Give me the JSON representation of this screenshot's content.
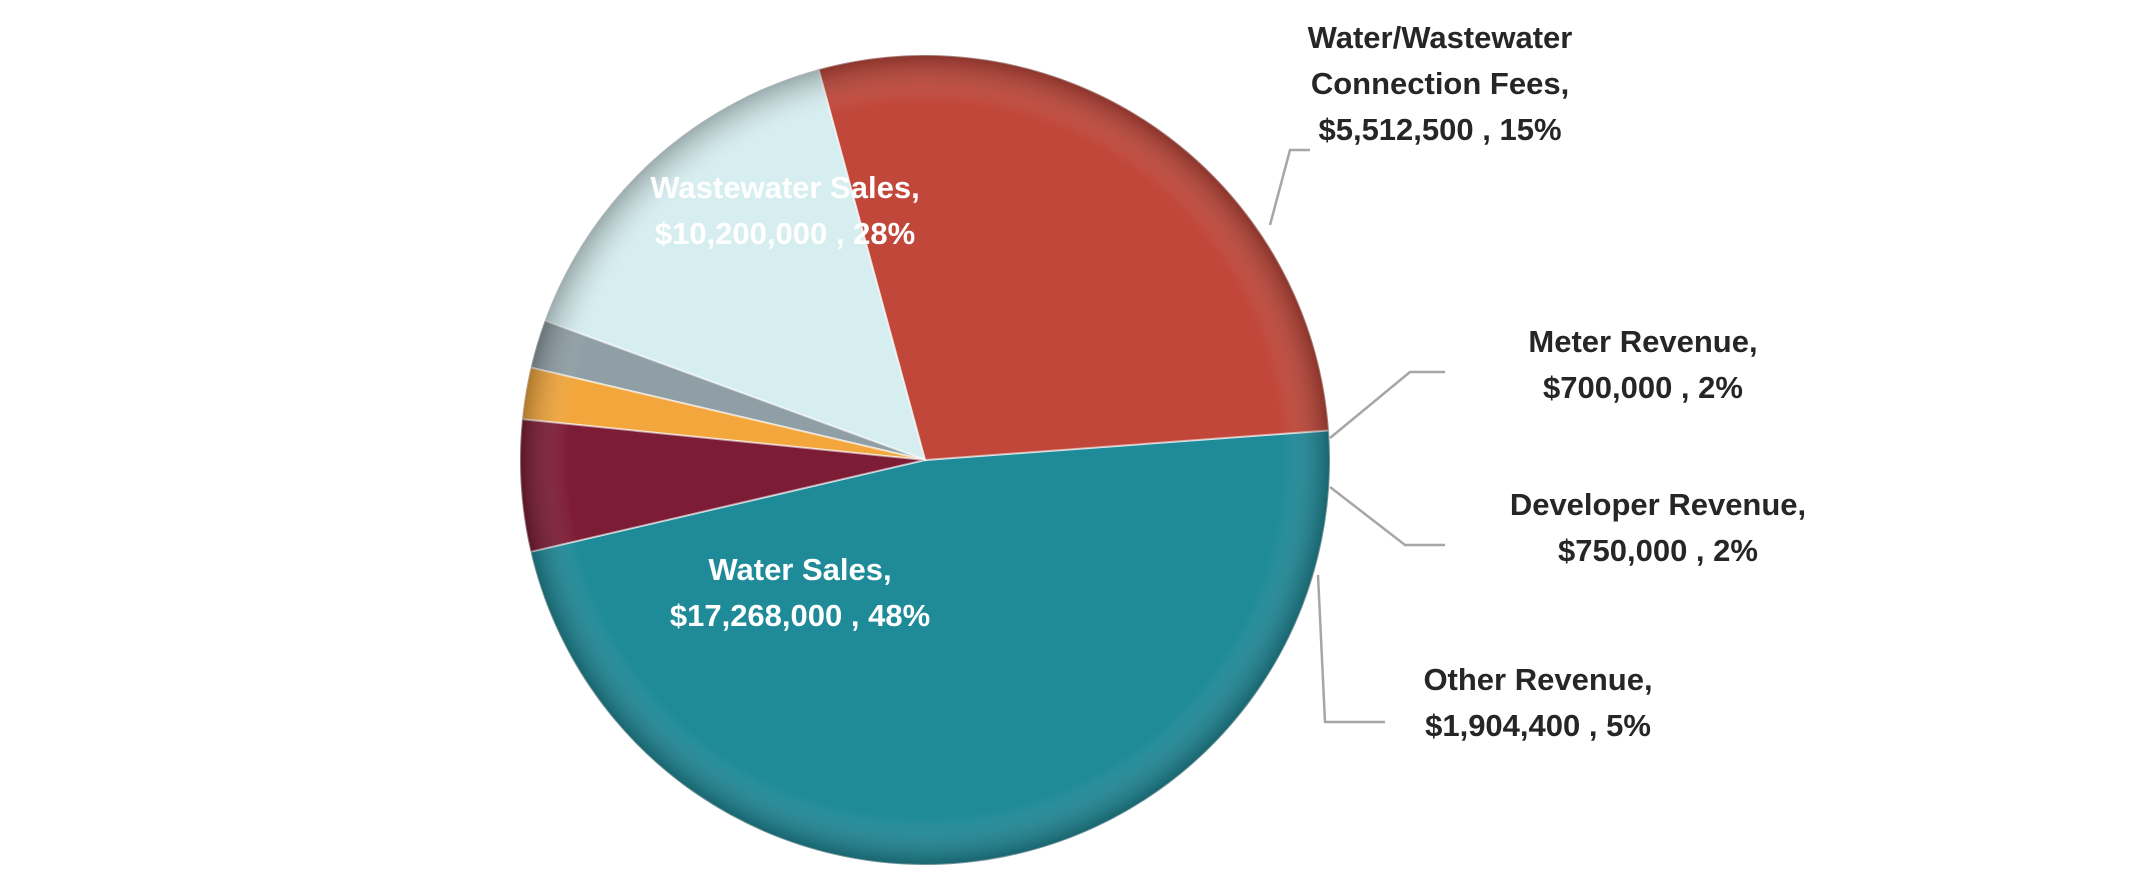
{
  "chart_data": {
    "type": "pie",
    "start_angle_deg": 193.1,
    "direction": "counterclockwise",
    "slices": [
      {
        "name": "Water Sales",
        "value": 17268000,
        "value_label": "$17,268,000",
        "percent_label": "48%",
        "color": "#1F8A98"
      },
      {
        "name": "Wastewater Sales",
        "value": 10200000,
        "value_label": "$10,200,000",
        "percent_label": "28%",
        "color": "#C0473A"
      },
      {
        "name": "Water/Wastewater Connection Fees",
        "value": 5512500,
        "value_label": "$5,512,500",
        "percent_label": "15%",
        "color": "#D6EEF0"
      },
      {
        "name": "Meter Revenue",
        "value": 700000,
        "value_label": "$700,000",
        "percent_label": "2%",
        "color": "#8F9FA5"
      },
      {
        "name": "Developer Revenue",
        "value": 750000,
        "value_label": "$750,000",
        "percent_label": "2%",
        "color": "#F2A63C"
      },
      {
        "name": "Other Revenue",
        "value": 1904400,
        "value_label": "$1,904,400",
        "percent_label": "5%",
        "color": "#7D1D35"
      }
    ],
    "labels": [
      {
        "slice": 0,
        "lines": [
          "Water Sales,",
          "$17,268,000 , 48%"
        ]
      },
      {
        "slice": 1,
        "lines": [
          "Wastewater Sales,",
          "$10,200,000 , 28%"
        ]
      },
      {
        "slice": 2,
        "lines": [
          "Water/Wastewater",
          "Connection Fees,",
          "$5,512,500 , 15%"
        ]
      },
      {
        "slice": 3,
        "lines": [
          "Meter Revenue,",
          "$700,000 , 2%"
        ]
      },
      {
        "slice": 4,
        "lines": [
          "Developer Revenue,",
          "$750,000 , 2%"
        ]
      },
      {
        "slice": 5,
        "lines": [
          "Other Revenue,",
          "$1,904,400 , 5%"
        ]
      }
    ],
    "legend": "none"
  }
}
